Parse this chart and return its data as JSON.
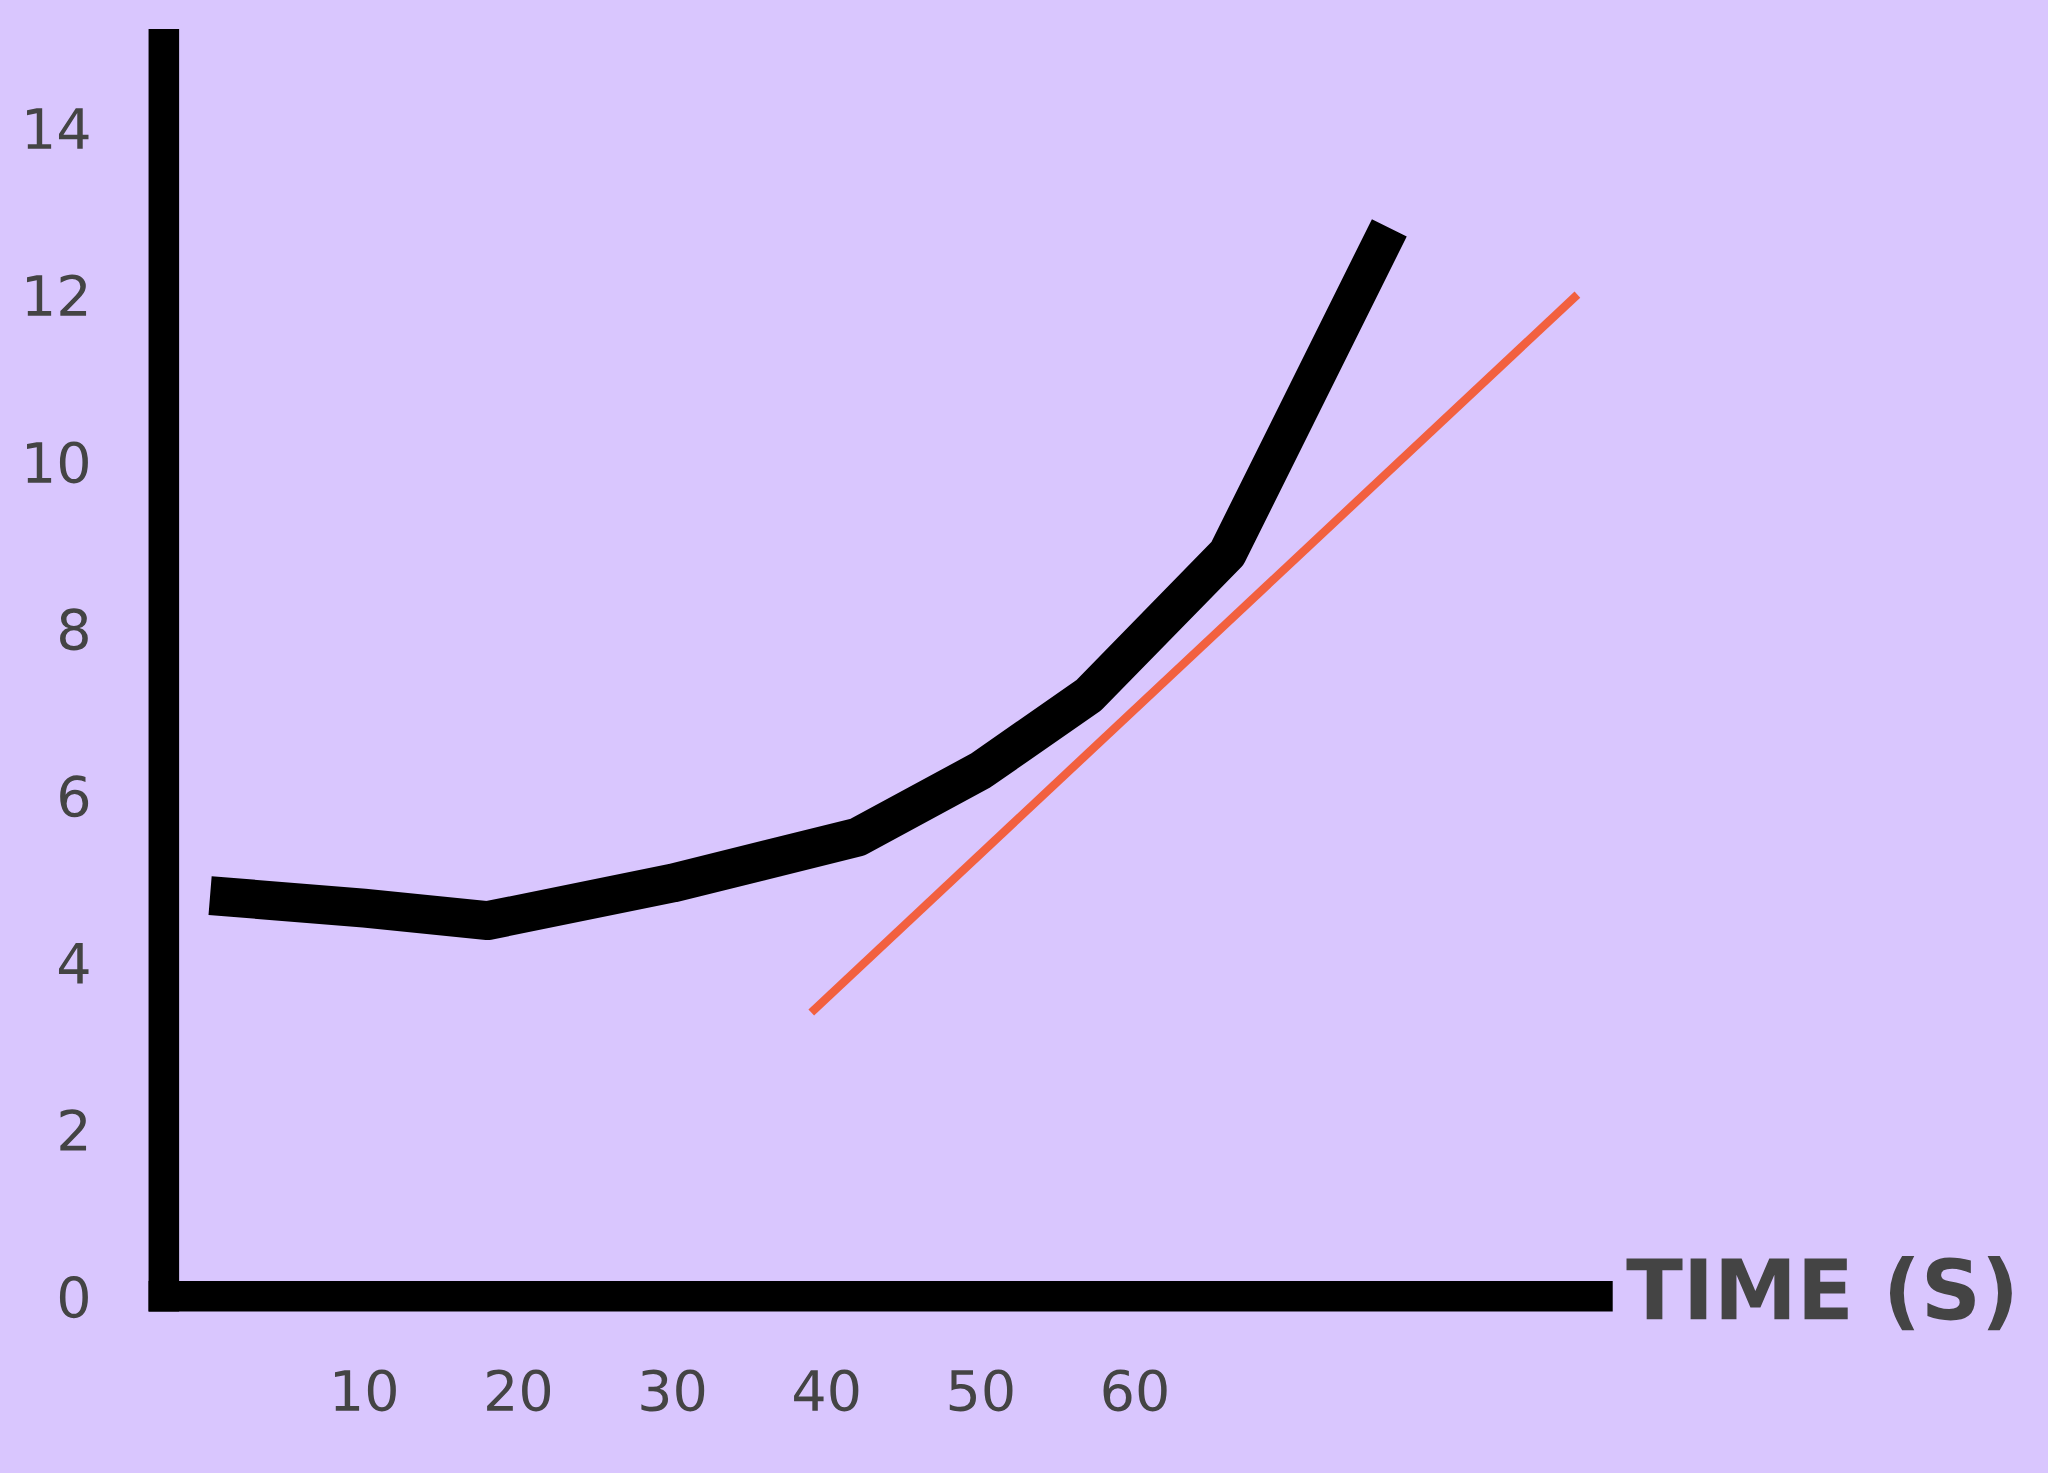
{
  "chart_data": {
    "type": "line",
    "xlabel": "TIME (S)",
    "series": [
      {
        "color": "#000000",
        "x": [
          0,
          10,
          18,
          30,
          42,
          50,
          57,
          66,
          76.5
        ],
        "values": [
          4.8,
          4.65,
          4.5,
          4.95,
          5.5,
          6.3,
          7.2,
          8.9,
          12.8
        ]
      },
      {
        "type": "line",
        "color": "#f2603f",
        "x": [
          39,
          88.7
        ],
        "values": [
          3.4,
          12.0
        ]
      }
    ],
    "xlim": [
      -3,
      90
    ],
    "ylim": [
      0,
      15
    ],
    "xticks": [
      10,
      20,
      30,
      40,
      50,
      60
    ],
    "yticks": [
      0,
      2,
      4,
      6,
      8,
      10,
      12,
      14
    ],
    "grid": false,
    "legend": false,
    "marker": "none",
    "line_style": "solid"
  }
}
